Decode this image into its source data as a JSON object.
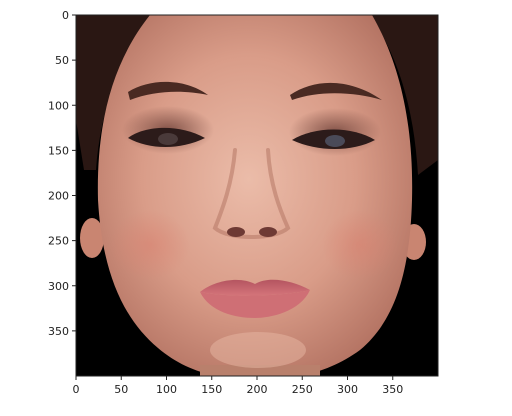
{
  "figure": {
    "image_subject": "portrait-face",
    "colors": {
      "background": "#000000",
      "skin_light": "#e7b6a4",
      "skin_mid": "#d79a86",
      "skin_shadow": "#b57664",
      "hair": "#2a1713",
      "lips": "#c7646d",
      "eye": "#2c1b1a"
    }
  },
  "axes": {
    "x_range": [
      0,
      400
    ],
    "y_range": [
      0,
      400
    ],
    "y_inverted": true,
    "x_ticks": [
      "0",
      "50",
      "100",
      "150",
      "200",
      "250",
      "300",
      "350"
    ],
    "y_ticks": [
      "0",
      "50",
      "100",
      "150",
      "200",
      "250",
      "300",
      "350"
    ]
  }
}
